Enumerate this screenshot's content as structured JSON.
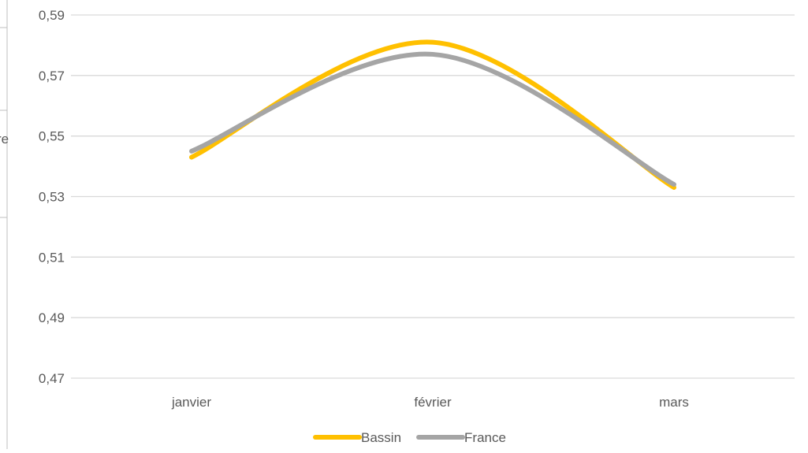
{
  "chart_data": {
    "type": "line",
    "smooth": true,
    "categories": [
      "janvier",
      "février",
      "mars"
    ],
    "series": [
      {
        "name": "Bassin",
        "values": [
          0.543,
          0.581,
          0.533
        ],
        "color": "#ffc000"
      },
      {
        "name": "France",
        "values": [
          0.545,
          0.577,
          0.534
        ],
        "color": "#a5a5a5"
      }
    ],
    "y_ticks": [
      "0,59",
      "0,57",
      "0,55",
      "0,53",
      "0,51",
      "0,49",
      "0,47"
    ],
    "ylim": [
      0.47,
      0.59
    ],
    "grid": true,
    "legend_position": "bottom-center",
    "title": "",
    "xlabel": "",
    "ylabel": "",
    "cropped_left_label_fragment": "re"
  }
}
